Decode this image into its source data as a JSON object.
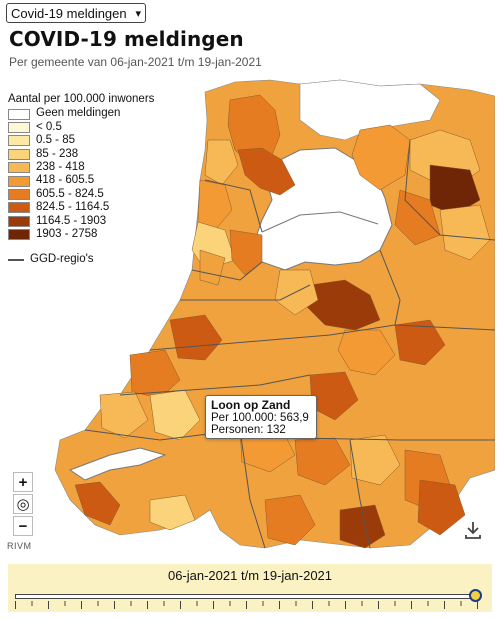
{
  "selector": {
    "value": "Covid-19 meldingen"
  },
  "title": "COVID-19 meldingen",
  "subtitle": "Per gemeente van 06-jan-2021 t/m 19-jan-2021",
  "legend": {
    "heading": "Aantal per 100.000 inwoners",
    "items": [
      {
        "label": "Geen meldingen",
        "color": "#ffffff"
      },
      {
        "label": "< 0.5",
        "color": "#fff7d6"
      },
      {
        "label": "0.5 - 85",
        "color": "#fde9a6"
      },
      {
        "label": "85 - 238",
        "color": "#fbd37a"
      },
      {
        "label": "238 - 418",
        "color": "#f7b955"
      },
      {
        "label": "418 - 605.5",
        "color": "#f39a35"
      },
      {
        "label": "605.5 - 824.5",
        "color": "#e57c22"
      },
      {
        "label": "824.5 - 1164.5",
        "color": "#cc5a13"
      },
      {
        "label": "1164.5 - 1903",
        "color": "#9c3b0a"
      },
      {
        "label": "1903 - 2758",
        "color": "#6e2606"
      }
    ],
    "boundary_label": "GGD-regio's"
  },
  "tooltip": {
    "name": "Loon op Zand",
    "line1": "Per 100.000: 563,9",
    "line2": "Personen: 132"
  },
  "attribution": "RIVM",
  "controls": {
    "zoom_in": "+",
    "locate": "◎",
    "zoom_out": "−"
  },
  "timeline": {
    "label": "06-jan-2021 t/m 19-jan-2021",
    "tick_count": 14,
    "position": 1.0
  }
}
